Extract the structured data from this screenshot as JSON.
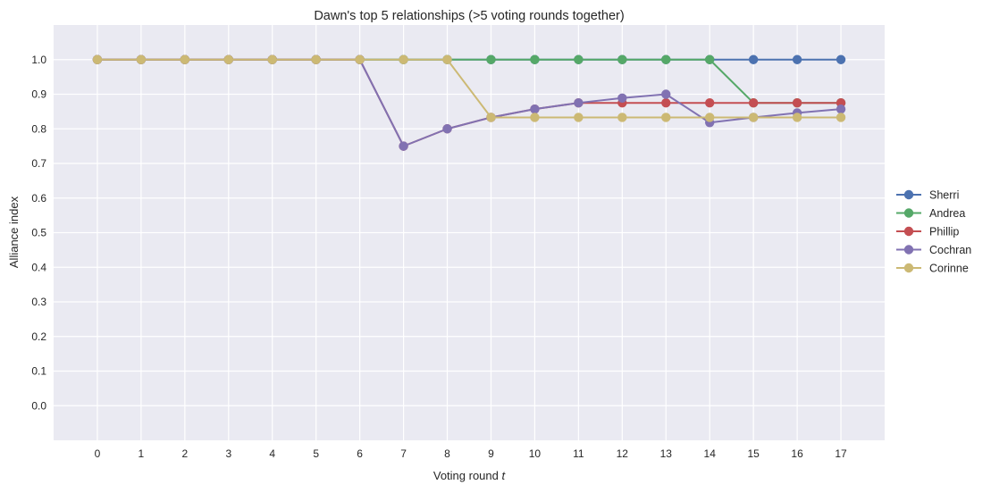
{
  "chart_data": {
    "type": "line",
    "title": "Dawn's top 5 relationships (>5 voting rounds together)",
    "xlabel": "Voting round",
    "xlabel_var": "t",
    "ylabel": "Alliance index",
    "x": [
      0,
      1,
      2,
      3,
      4,
      5,
      6,
      7,
      8,
      9,
      10,
      11,
      12,
      13,
      14,
      15,
      16,
      17
    ],
    "xlim": [
      -1,
      18
    ],
    "ylim": [
      -0.1,
      1.1
    ],
    "yticks": [
      0.0,
      0.1,
      0.2,
      0.3,
      0.4,
      0.5,
      0.6,
      0.7,
      0.8,
      0.9,
      1.0
    ],
    "ytick_labels": [
      "0.0",
      "0.1",
      "0.2",
      "0.3",
      "0.4",
      "0.5",
      "0.6",
      "0.7",
      "0.8",
      "0.9",
      "1.0"
    ],
    "xticks": [
      0,
      1,
      2,
      3,
      4,
      5,
      6,
      7,
      8,
      9,
      10,
      11,
      12,
      13,
      14,
      15,
      16,
      17
    ],
    "xtick_labels": [
      "0",
      "1",
      "2",
      "3",
      "4",
      "5",
      "6",
      "7",
      "8",
      "9",
      "10",
      "11",
      "12",
      "13",
      "14",
      "15",
      "16",
      "17"
    ],
    "grid": true,
    "legend_position": "outside-right",
    "series": [
      {
        "name": "Sherri",
        "color": "#4C72B0",
        "values": [
          1.0,
          1.0,
          1.0,
          1.0,
          1.0,
          1.0,
          1.0,
          1.0,
          1.0,
          1.0,
          1.0,
          1.0,
          1.0,
          1.0,
          1.0,
          1.0,
          1.0,
          1.0
        ]
      },
      {
        "name": "Andrea",
        "color": "#55A868",
        "values": [
          1.0,
          1.0,
          1.0,
          1.0,
          1.0,
          1.0,
          1.0,
          1.0,
          1.0,
          1.0,
          1.0,
          1.0,
          1.0,
          1.0,
          1.0,
          0.875,
          0.875,
          0.875
        ]
      },
      {
        "name": "Phillip",
        "color": "#C44E52",
        "values": [
          1.0,
          1.0,
          1.0,
          1.0,
          1.0,
          1.0,
          1.0,
          0.75,
          0.8,
          0.833,
          0.857,
          0.875,
          0.875,
          0.875,
          0.875,
          0.875,
          0.875,
          0.875
        ]
      },
      {
        "name": "Cochran",
        "color": "#8172B2",
        "values": [
          1.0,
          1.0,
          1.0,
          1.0,
          1.0,
          1.0,
          1.0,
          0.75,
          0.8,
          0.833,
          0.857,
          0.875,
          0.889,
          0.9,
          0.818,
          0.833,
          0.846,
          0.857
        ]
      },
      {
        "name": "Corinne",
        "color": "#CCB974",
        "values": [
          1.0,
          1.0,
          1.0,
          1.0,
          1.0,
          1.0,
          1.0,
          1.0,
          1.0,
          0.833,
          0.833,
          0.833,
          0.833,
          0.833,
          0.833,
          0.833,
          0.833,
          0.833
        ]
      }
    ],
    "style": {
      "background": "#EAEAF2",
      "gridline": "#FFFFFF",
      "text": "#262626"
    }
  }
}
